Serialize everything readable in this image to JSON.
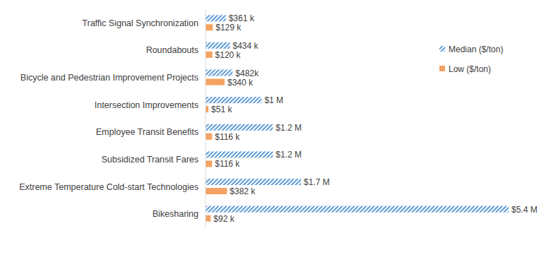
{
  "chart_data": {
    "type": "bar",
    "orientation": "horizontal",
    "categories": [
      "Traffic Signal Synchronization",
      "Roundabouts",
      "Bicycle and Pedestrian Improvement Projects",
      "Intersection Improvements",
      "Employee Transit Benefits",
      "Subsidized Transit Fares",
      "Extreme Temperature Cold-start Technologies",
      "Bikesharing"
    ],
    "series": [
      {
        "name": "Median ($/ton)",
        "color": "#5b9bd5",
        "values": [
          361000,
          434000,
          482000,
          1000000,
          1200000,
          1200000,
          1700000,
          5400000
        ],
        "value_labels": [
          "$361 k",
          "$434 k",
          "$482k",
          "$1 M",
          "$1.2 M",
          "$1.2 M",
          "$1.7 M",
          "$5.4 M"
        ]
      },
      {
        "name": "Low ($/ton)",
        "color": "#f4a262",
        "values": [
          129000,
          120000,
          340000,
          51000,
          116000,
          116000,
          382000,
          92000
        ],
        "value_labels": [
          "$129 k",
          "$120 k",
          "$340 k",
          "$51 k",
          "$116 k",
          "$116 k",
          "$382 k",
          "$92 k"
        ]
      }
    ],
    "xlim": [
      0,
      5400000
    ],
    "data_labels": true,
    "tick_labels": "y",
    "grid": false,
    "legend": "right"
  }
}
